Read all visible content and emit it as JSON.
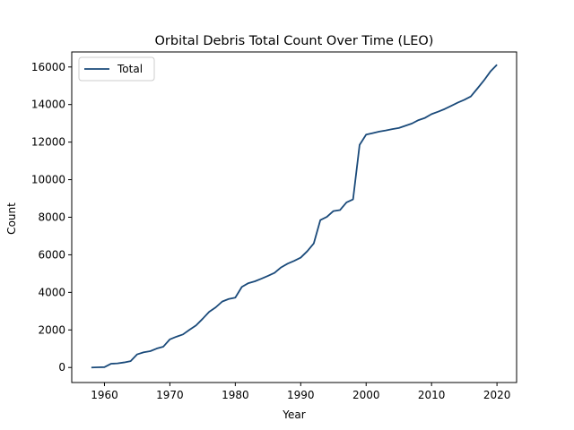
{
  "chart_data": {
    "type": "line",
    "title": "Orbital Debris Total Count Over Time (LEO)",
    "xlabel": "Year",
    "ylabel": "Count",
    "xlim": [
      1955,
      2023
    ],
    "ylim": [
      -800,
      16800
    ],
    "x_ticks": [
      1960,
      1970,
      1980,
      1990,
      2000,
      2010,
      2020
    ],
    "y_ticks": [
      0,
      2000,
      4000,
      6000,
      8000,
      10000,
      12000,
      14000,
      16000
    ],
    "grid": false,
    "legend_position": "upper-left",
    "series": [
      {
        "name": "Total",
        "color": "#1a4a7a",
        "x": [
          1958,
          1959,
          1960,
          1961,
          1962,
          1963,
          1964,
          1965,
          1966,
          1967,
          1968,
          1969,
          1970,
          1971,
          1972,
          1973,
          1974,
          1975,
          1976,
          1977,
          1978,
          1979,
          1980,
          1981,
          1982,
          1983,
          1984,
          1985,
          1986,
          1987,
          1988,
          1989,
          1990,
          1991,
          1992,
          1993,
          1994,
          1995,
          1996,
          1997,
          1998,
          1999,
          2000,
          2001,
          2002,
          2003,
          2004,
          2005,
          2006,
          2007,
          2008,
          2009,
          2010,
          2011,
          2012,
          2013,
          2014,
          2015,
          2016,
          2017,
          2018,
          2019,
          2020
        ],
        "y": [
          0,
          10,
          20,
          200,
          220,
          270,
          340,
          700,
          810,
          870,
          1010,
          1110,
          1500,
          1640,
          1760,
          2010,
          2240,
          2590,
          2960,
          3200,
          3510,
          3650,
          3720,
          4290,
          4490,
          4590,
          4730,
          4880,
          5040,
          5330,
          5530,
          5680,
          5850,
          6190,
          6610,
          7850,
          8020,
          8330,
          8380,
          8790,
          8950,
          11850,
          12400,
          12480,
          12560,
          12620,
          12690,
          12750,
          12870,
          12990,
          13170,
          13290,
          13490,
          13620,
          13760,
          13930,
          14100,
          14250,
          14430,
          14850,
          15280,
          15760,
          16120
        ]
      }
    ]
  }
}
